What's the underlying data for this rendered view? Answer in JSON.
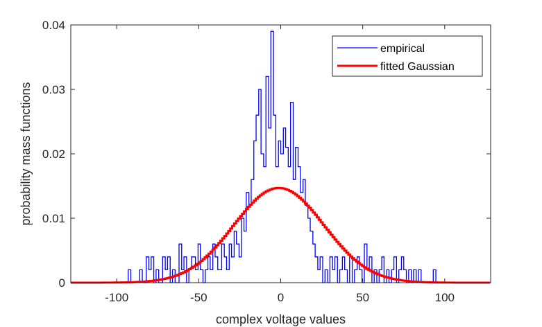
{
  "chart_data": {
    "type": "line",
    "title": "",
    "xlabel": "complex voltage values",
    "ylabel": "probability mass functions",
    "xlim": [
      -128,
      128
    ],
    "ylim": [
      0,
      0.04
    ],
    "xticks": [
      -100,
      -50,
      0,
      50,
      100
    ],
    "yticks": [
      0,
      0.01,
      0.02,
      0.03,
      0.04
    ],
    "xtick_labels": [
      "-100",
      "-50",
      "0",
      "50",
      "100"
    ],
    "ytick_labels": [
      "0",
      "0.01",
      "0.02",
      "0.03",
      "0.04"
    ],
    "legend": {
      "position": "top-right"
    },
    "series": [
      {
        "name": "empirical",
        "color": "#0000ff",
        "style": "stairs",
        "bin_width": 1.6,
        "x": [
          -128,
          -93,
          -91.4,
          -86,
          -84.4,
          -82,
          -80.4,
          -79,
          -77.4,
          -76,
          -74.4,
          -72,
          -70.4,
          -69,
          -67.4,
          -66,
          -64.4,
          -62,
          -60.4,
          -59,
          -57.4,
          -56,
          -54.4,
          -52,
          -50.4,
          -49,
          -47.4,
          -46,
          -44.4,
          -43,
          -41.4,
          -40,
          -38.4,
          -36,
          -34.4,
          -33,
          -31.4,
          -30,
          -28.4,
          -27,
          -25.4,
          -24,
          -22.4,
          -21,
          -19.4,
          -18,
          -16.4,
          -15,
          -13.4,
          -12,
          -10.4,
          -9,
          -7.4,
          -6,
          -4.4,
          -3,
          -1.4,
          0,
          1.6,
          3,
          4.6,
          6,
          7.6,
          9,
          10.6,
          12,
          13.6,
          15,
          16.6,
          18,
          19.6,
          21,
          22.6,
          24,
          25.6,
          27,
          28.6,
          30,
          31.6,
          33,
          34.6,
          36,
          37.6,
          39,
          40.6,
          42,
          43.6,
          45,
          46.6,
          48,
          49.6,
          51,
          52.6,
          54,
          55.6,
          57,
          58.6,
          60,
          61.6,
          63,
          64.6,
          66,
          67.6,
          69,
          70.6,
          72,
          73.6,
          75,
          76.6,
          78,
          79.6,
          81,
          82.6,
          84,
          85.6,
          93,
          94.6,
          128
        ],
        "values": [
          0,
          0.002,
          0,
          0.002,
          0,
          0.004,
          0.002,
          0.004,
          0,
          0.002,
          0,
          0.004,
          0.002,
          0.004,
          0,
          0.002,
          0,
          0.006,
          0.002,
          0.004,
          0,
          0.002,
          0.004,
          0.002,
          0.006,
          0.002,
          0,
          0.002,
          0.004,
          0.002,
          0.006,
          0.004,
          0.002,
          0.006,
          0.004,
          0.002,
          0.006,
          0.004,
          0.008,
          0.006,
          0.004,
          0.01,
          0.008,
          0.014,
          0.012,
          0.016,
          0.022,
          0.026,
          0.03,
          0.02,
          0.018,
          0.032,
          0.024,
          0.039,
          0.026,
          0.018,
          0.022,
          0.02,
          0.024,
          0.021,
          0.018,
          0.028,
          0.016,
          0.021,
          0.018,
          0.014,
          0.016,
          0.012,
          0.01,
          0.008,
          0.006,
          0.004,
          0.002,
          0.004,
          0,
          0.002,
          0,
          0.004,
          0.002,
          0.004,
          0,
          0.002,
          0.004,
          0.002,
          0,
          0.004,
          0,
          0.002,
          0.004,
          0.002,
          0,
          0.006,
          0.002,
          0.004,
          0,
          0.002,
          0,
          0.002,
          0.004,
          0,
          0.002,
          0,
          0.002,
          0.004,
          0,
          0.002,
          0.004,
          0.002,
          0,
          0.002,
          0,
          0.002,
          0,
          0.002,
          0,
          0.002,
          0,
          0
        ]
      },
      {
        "name": "fitted Gaussian",
        "color": "#ff0000",
        "style": "gaussian",
        "mean": -0.5,
        "sigma": 27.5,
        "peak": 0.0147
      }
    ]
  }
}
